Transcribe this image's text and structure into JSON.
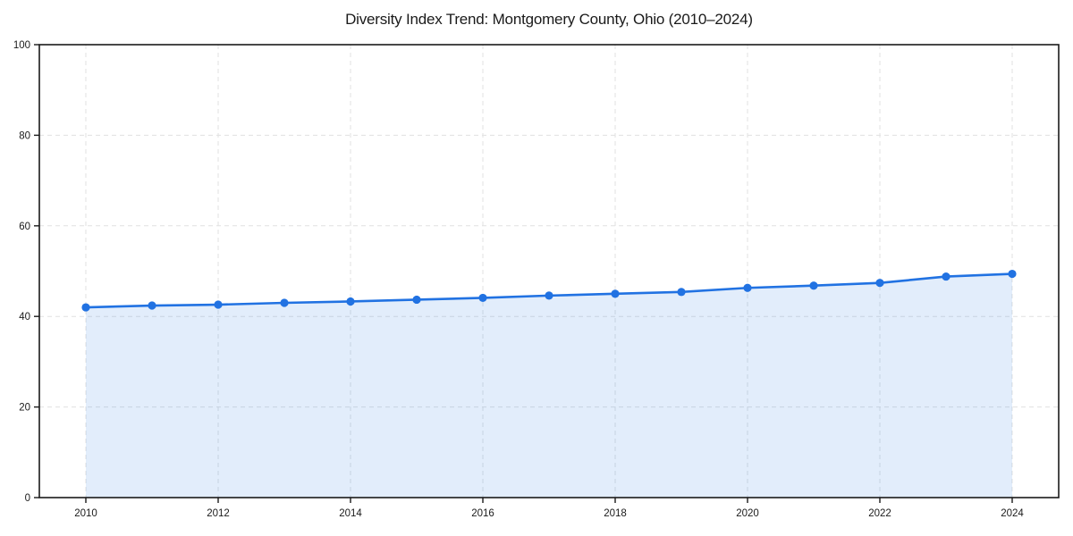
{
  "page": {
    "background_color": "#ffffff"
  },
  "chart_data": {
    "type": "area",
    "title": "Diversity Index Trend: Montgomery County, Ohio (2010–2024)",
    "x": [
      2010,
      2011,
      2012,
      2013,
      2014,
      2015,
      2016,
      2017,
      2018,
      2019,
      2020,
      2021,
      2022,
      2023,
      2024
    ],
    "values": [
      42.0,
      42.4,
      42.6,
      43.0,
      43.3,
      43.7,
      44.1,
      44.6,
      45.0,
      45.4,
      46.3,
      46.8,
      47.4,
      48.8,
      49.4
    ],
    "xlabel": "",
    "ylabel": "",
    "xlim": [
      2010,
      2024
    ],
    "ylim": [
      0,
      100
    ],
    "yticks": [
      0,
      20,
      40,
      60,
      80,
      100
    ],
    "ytick_labels": [
      "0",
      "20",
      "40",
      "60",
      "80",
      "100"
    ],
    "xticks": [
      2010,
      2012,
      2014,
      2016,
      2018,
      2020,
      2022,
      2024
    ],
    "xtick_labels": [
      "2010",
      "2012",
      "2014",
      "2016",
      "2018",
      "2020",
      "2022",
      "2024"
    ],
    "grid": "dashed",
    "legend": "none",
    "line_color": "#2172e2",
    "fill_color": "rgba(33, 114, 226, 0.13)",
    "grid_color": "#e1e1e1",
    "frame_color": "#1a1a1a",
    "tick_label_color": "#1a1a1a"
  }
}
